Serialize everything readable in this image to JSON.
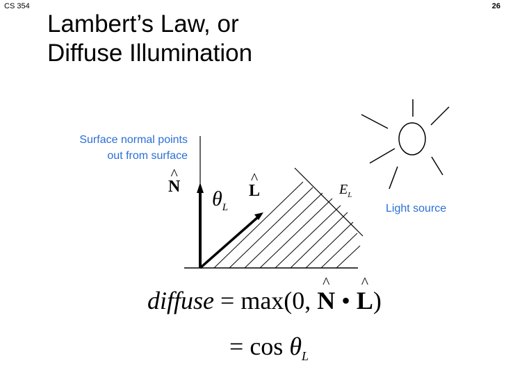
{
  "header": {
    "course": "CS 354",
    "page_number": "26"
  },
  "slide": {
    "title_line1": "Lambert’s Law, or",
    "title_line2": "Diffuse Illumination"
  },
  "diagram": {
    "normal_annotation_line1": "Surface normal points",
    "normal_annotation_line2": "out from surface",
    "light_source_label": "Light source",
    "normal_symbol": "N",
    "light_symbol": "L",
    "angle_symbol": "θ",
    "angle_subscript": "L",
    "irradiance_symbol": "E",
    "irradiance_subscript": "L"
  },
  "equation": {
    "line1_lhs": "diffuse",
    "line1_eq": " = ",
    "line1_func": "max(0,",
    "line1_n": "N",
    "line1_dot": " • ",
    "line1_l": "L",
    "line1_close": ")",
    "line2_eq": "= ",
    "line2_func": "cos ",
    "line2_theta": "θ",
    "line2_sub": "L"
  }
}
